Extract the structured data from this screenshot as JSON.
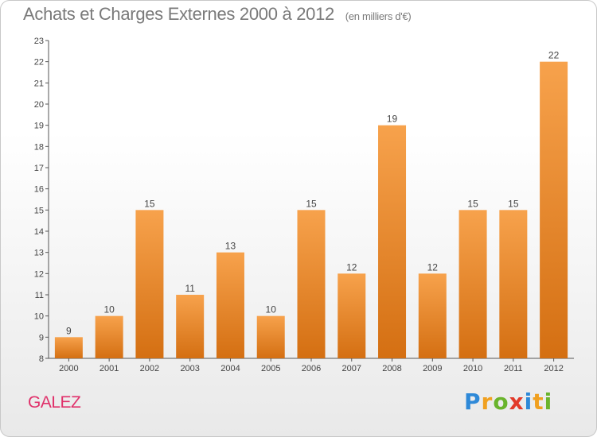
{
  "chart_data": {
    "type": "bar",
    "title": "Achats et Charges Externes 2000 à 2012",
    "subtitle": "(en milliers d'€)",
    "categories": [
      "2000",
      "2001",
      "2002",
      "2003",
      "2004",
      "2005",
      "2006",
      "2007",
      "2008",
      "2009",
      "2010",
      "2011",
      "2012"
    ],
    "values": [
      9,
      10,
      15,
      11,
      13,
      10,
      15,
      12,
      19,
      12,
      15,
      15,
      22
    ],
    "ylim": [
      8,
      23
    ],
    "yticks": [
      8,
      9,
      10,
      11,
      12,
      13,
      14,
      15,
      16,
      17,
      18,
      19,
      20,
      21,
      22,
      23
    ],
    "grid": false,
    "bar_color": "#f08a2a",
    "xlabel": "",
    "ylabel": ""
  },
  "footer": {
    "place": "GALEZ",
    "logo": "Proxiti",
    "logo_letters": [
      {
        "char": "P",
        "color": "#2e89d8"
      },
      {
        "char": "r",
        "color": "#f0a020"
      },
      {
        "char": "o",
        "color": "#6ab42c"
      },
      {
        "char": "x",
        "color": "#e23a2a"
      },
      {
        "char": "i",
        "color": "#2e89d8"
      },
      {
        "char": "t",
        "color": "#f0a020"
      },
      {
        "char": "i",
        "color": "#6ab42c"
      }
    ]
  }
}
